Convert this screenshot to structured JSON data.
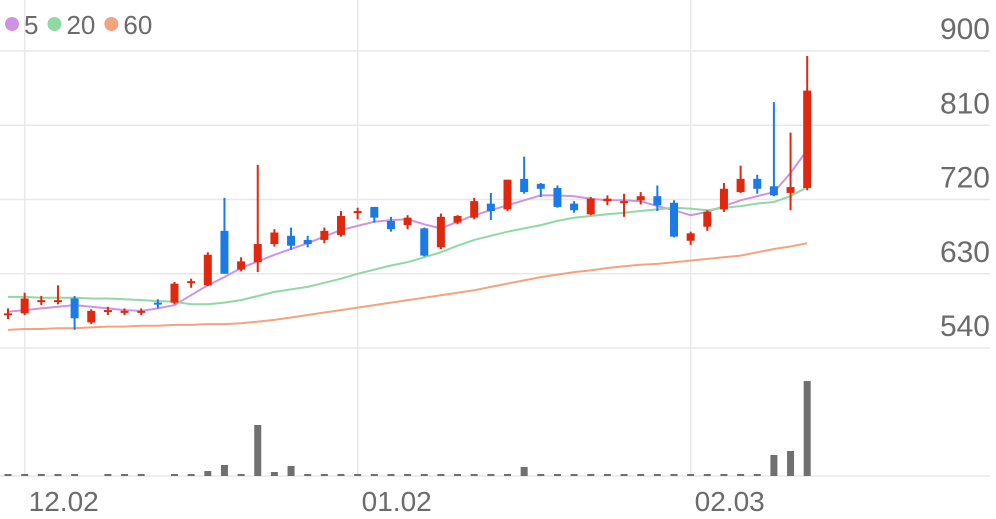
{
  "chart_data": {
    "type": "candlestick",
    "categories": [
      null,
      "12.02",
      null,
      null,
      null,
      null,
      null,
      null,
      null,
      null,
      null,
      null,
      null,
      null,
      null,
      null,
      null,
      null,
      null,
      null,
      null,
      "01.02",
      null,
      null,
      null,
      null,
      null,
      null,
      null,
      null,
      null,
      null,
      null,
      null,
      null,
      null,
      null,
      null,
      null,
      null,
      null,
      "02.03",
      null,
      null,
      null,
      null,
      null,
      null,
      null
    ],
    "open": [
      580,
      582,
      596,
      597,
      600,
      571,
      584,
      583,
      583,
      595,
      595,
      619,
      616,
      682,
      635,
      644,
      666,
      676,
      671,
      671,
      677,
      704,
      711,
      694,
      689,
      685,
      662,
      692,
      698,
      715,
      708,
      745,
      739,
      734,
      715,
      702,
      718,
      717,
      719,
      724,
      716,
      670,
      687,
      708,
      729,
      745,
      736,
      728,
      734
    ],
    "close": [
      582,
      600,
      598,
      598,
      576,
      585,
      586,
      585,
      585,
      593,
      618,
      621,
      653,
      630,
      645,
      666,
      680,
      664,
      666,
      682,
      700,
      706,
      698,
      684,
      698,
      652,
      699,
      700,
      718,
      706,
      744,
      729,
      733,
      711,
      707,
      721,
      721,
      718,
      724,
      713,
      675,
      679,
      705,
      733,
      745,
      733,
      725,
      735,
      852
    ],
    "high": [
      588,
      607,
      603,
      616,
      603,
      587,
      590,
      588,
      588,
      599,
      620,
      624,
      656,
      722,
      650,
      762,
      684,
      686,
      676,
      686,
      706,
      710,
      711,
      699,
      701,
      686,
      703,
      701,
      722,
      728,
      744,
      772,
      740,
      737,
      718,
      723,
      725,
      727,
      729,
      737,
      719,
      681,
      707,
      740,
      761,
      750,
      838,
      801,
      894
    ],
    "low": [
      575,
      580,
      592,
      593,
      562,
      569,
      580,
      580,
      580,
      588,
      593,
      613,
      615,
      630,
      633,
      632,
      663,
      659,
      662,
      667,
      675,
      696,
      692,
      681,
      684,
      651,
      660,
      690,
      696,
      695,
      706,
      727,
      723,
      710,
      704,
      701,
      713,
      699,
      714,
      706,
      674,
      665,
      682,
      705,
      728,
      727,
      724,
      707,
      731
    ],
    "series": [
      {
        "name": "5",
        "color": "#cf93e4",
        "values": [
          584,
          586,
          588,
          590,
          592,
          590,
          588,
          586,
          585,
          588,
          592,
          604,
          616,
          626,
          637,
          645,
          653,
          660,
          667,
          675,
          683,
          688,
          693,
          695,
          696,
          690,
          685,
          693,
          701,
          707,
          713,
          719,
          725,
          725,
          724,
          721,
          719,
          719,
          718,
          712,
          707,
          701,
          705,
          712,
          719,
          724,
          729,
          752,
          780
        ]
      },
      {
        "name": "20",
        "color": "#90d9a3",
        "values": [
          602,
          602,
          601,
          601,
          601,
          600,
          600,
          599,
          598,
          597,
          596,
          593,
          593,
          595,
          598,
          603,
          608,
          611,
          614,
          619,
          624,
          630,
          635,
          640,
          644,
          650,
          656,
          664,
          671,
          676,
          681,
          685,
          689,
          694,
          698,
          700,
          702,
          704,
          706,
          708,
          710,
          709,
          707,
          710,
          712,
          715,
          717,
          724,
          735
        ]
      },
      {
        "name": "60",
        "color": "#f3a37e",
        "values": [
          562,
          563,
          563,
          564,
          564,
          565,
          566,
          566,
          567,
          567,
          568,
          568,
          569,
          569,
          570,
          572,
          574,
          577,
          580,
          583,
          586,
          589,
          592,
          595,
          598,
          601,
          604,
          607,
          610,
          614,
          618,
          622,
          626,
          629,
          632,
          634,
          637,
          639,
          641,
          642,
          644,
          646,
          648,
          650,
          652,
          656,
          660,
          663,
          667
        ]
      }
    ],
    "volume": [
      2,
      2,
      2,
      2,
      2,
      0,
      2,
      2,
      2,
      0,
      2,
      2,
      5,
      11,
      2,
      51,
      4,
      10,
      2,
      2,
      2,
      2,
      2,
      2,
      2,
      2,
      2,
      2,
      2,
      2,
      2,
      9,
      2,
      2,
      2,
      2,
      2,
      2,
      2,
      2,
      2,
      2,
      2,
      2,
      2,
      2,
      21,
      25,
      95
    ],
    "volume_color": "#707070",
    "volume_lim": [
      0,
      100
    ],
    "up_color": "#e0280e",
    "down_color": "#1b7ae6",
    "ylim": [
      540,
      900
    ],
    "yticks": [
      540,
      630,
      720,
      810,
      900
    ],
    "grid": true
  }
}
